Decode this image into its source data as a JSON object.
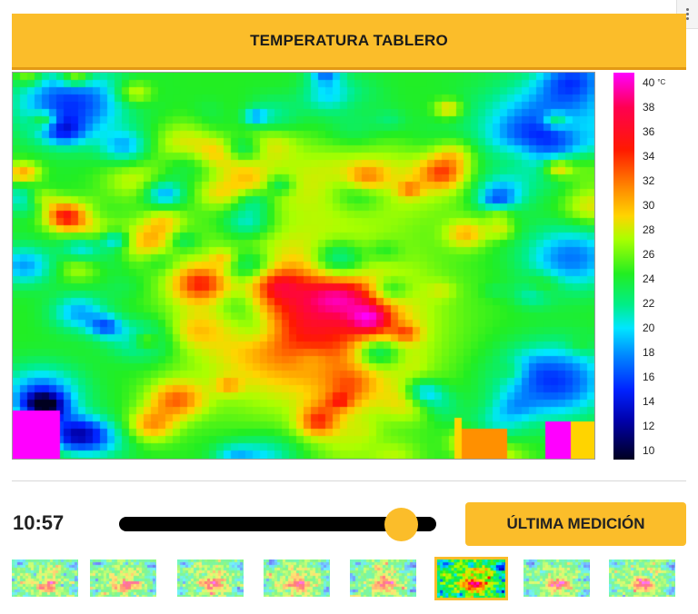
{
  "header": {
    "title": "TEMPERATURA TABLERO"
  },
  "heatmap": {
    "colorbar": {
      "unit": "°C",
      "ticks": [
        "40",
        "38",
        "36",
        "34",
        "32",
        "30",
        "28",
        "26",
        "24",
        "22",
        "20",
        "18",
        "16",
        "14",
        "12",
        "10"
      ],
      "min": 10,
      "max": 40
    }
  },
  "controls": {
    "time": "10:57",
    "slider_position": 0.89,
    "latest_button_label": "ÚLTIMA MEDICIÓN"
  },
  "thumbnails": {
    "count": 8,
    "selected_index": 5
  },
  "colors": {
    "accent": "#fbbd2a",
    "accent_dark": "#e39a14"
  }
}
